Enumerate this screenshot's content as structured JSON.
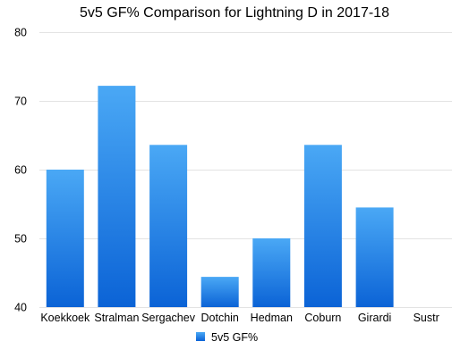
{
  "chart_data": {
    "type": "bar",
    "title": "5v5 GF% Comparison for Lightning D in 2017-18",
    "xlabel": "",
    "ylabel": "",
    "categories": [
      "Koekkoek",
      "Stralman",
      "Sergachev",
      "Dotchin",
      "Hedman",
      "Coburn",
      "Girardi",
      "Sustr"
    ],
    "series": [
      {
        "name": "5v5 GF%",
        "values": [
          60.0,
          72.2,
          63.6,
          44.4,
          50.0,
          63.6,
          54.5,
          40.0
        ],
        "color_top": "#4aa8f5",
        "color_bottom": "#0b63d6"
      }
    ],
    "ylim": [
      40,
      80
    ],
    "yticks": [
      40,
      50,
      60,
      70,
      80
    ],
    "grid": true,
    "legend_position": "bottom-center"
  }
}
